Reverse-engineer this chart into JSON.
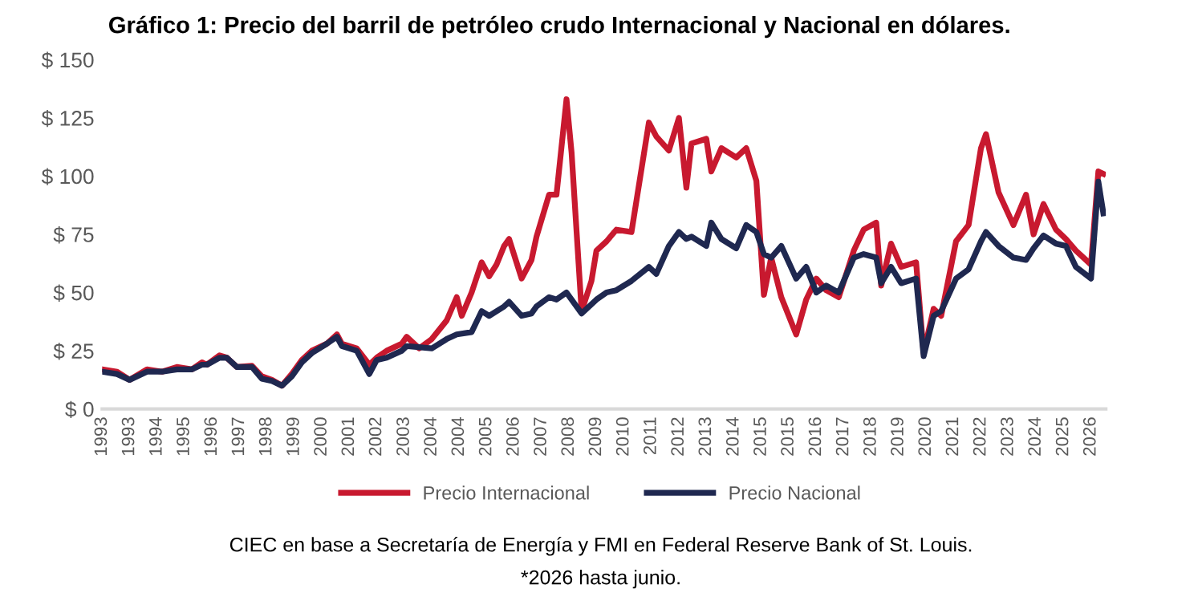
{
  "chart_data": {
    "type": "line",
    "title": "Gráfico 1: Precio del barril de petróleo crudo Internacional y Nacional en dólares.",
    "series": [
      {
        "name": "Precio Internacional",
        "color": "#c8192f",
        "x": [
          "1993-01",
          "1993-07",
          "1993-12",
          "1994-07",
          "1995-01",
          "1995-07",
          "1996-01",
          "1996-05",
          "1996-07",
          "1996-12",
          "1997-03",
          "1997-07",
          "1998-01",
          "1998-05",
          "1998-09",
          "1999-01",
          "1999-05",
          "1999-09",
          "2000-01",
          "2000-07",
          "2000-11",
          "2001-01",
          "2001-07",
          "2001-12",
          "2002-03",
          "2002-07",
          "2003-01",
          "2003-03",
          "2003-08",
          "2004-01",
          "2004-07",
          "2004-11",
          "2005-01",
          "2005-05",
          "2005-09",
          "2005-12",
          "2006-03",
          "2006-06",
          "2006-08",
          "2007-01",
          "2007-05",
          "2007-07",
          "2007-12",
          "2008-03",
          "2008-07",
          "2008-09",
          "2009-01",
          "2009-05",
          "2009-07",
          "2009-11",
          "2010-03",
          "2010-09",
          "2011-04",
          "2011-07",
          "2011-12",
          "2012-04",
          "2012-07",
          "2012-09",
          "2013-03",
          "2013-05",
          "2013-09",
          "2014-03",
          "2014-07",
          "2014-11",
          "2015-02",
          "2015-05",
          "2015-09",
          "2016-03",
          "2016-07",
          "2016-11",
          "2017-03",
          "2017-08",
          "2018-02",
          "2018-06",
          "2018-11",
          "2019-01",
          "2019-05",
          "2019-09",
          "2020-03",
          "2020-06",
          "2020-10",
          "2021-01",
          "2021-07",
          "2021-12",
          "2022-05",
          "2022-07",
          "2022-12",
          "2023-06",
          "2023-11",
          "2024-02",
          "2024-06",
          "2024-11",
          "2025-03",
          "2025-07",
          "2026-01",
          "2026-04",
          "2026-06"
        ],
        "values": [
          17,
          16,
          12.5,
          17,
          16,
          18,
          17,
          20,
          19,
          23,
          22,
          18,
          18.5,
          14,
          12.5,
          10,
          15,
          21,
          25,
          28,
          32,
          28,
          26,
          19,
          22,
          25,
          28,
          31,
          26,
          30,
          38,
          48,
          40,
          50,
          63,
          57,
          62,
          70,
          73,
          56,
          64,
          74,
          92,
          92,
          133,
          110,
          42,
          55,
          68,
          72,
          77,
          76,
          123,
          117,
          111,
          125,
          95,
          114,
          116,
          102,
          112,
          108,
          112,
          98,
          49,
          65,
          48,
          32,
          47,
          56,
          51,
          48,
          68,
          77,
          80,
          53,
          71,
          61,
          63,
          24,
          43,
          40,
          72,
          79,
          112,
          118,
          93,
          79,
          92,
          75,
          88,
          77,
          73,
          68,
          62,
          102,
          101
        ]
      },
      {
        "name": "Precio Nacional",
        "color": "#1f2850",
        "x": [
          "1993-01",
          "1993-07",
          "1993-12",
          "1994-07",
          "1995-01",
          "1995-07",
          "1996-01",
          "1996-05",
          "1996-07",
          "1996-12",
          "1997-03",
          "1997-07",
          "1998-01",
          "1998-05",
          "1998-09",
          "1999-01",
          "1999-05",
          "1999-09",
          "2000-01",
          "2000-07",
          "2000-11",
          "2001-01",
          "2001-07",
          "2001-12",
          "2002-03",
          "2002-07",
          "2003-01",
          "2003-03",
          "2004-01",
          "2004-07",
          "2004-11",
          "2005-05",
          "2005-09",
          "2005-12",
          "2006-06",
          "2006-08",
          "2007-01",
          "2007-05",
          "2007-07",
          "2007-12",
          "2008-03",
          "2008-07",
          "2009-01",
          "2009-07",
          "2009-11",
          "2010-03",
          "2010-09",
          "2011-04",
          "2011-07",
          "2011-12",
          "2012-04",
          "2012-07",
          "2012-09",
          "2013-03",
          "2013-05",
          "2013-09",
          "2014-03",
          "2014-07",
          "2014-11",
          "2015-02",
          "2015-05",
          "2015-09",
          "2016-03",
          "2016-07",
          "2016-11",
          "2017-03",
          "2017-08",
          "2018-02",
          "2018-06",
          "2018-11",
          "2019-01",
          "2019-05",
          "2019-09",
          "2020-03",
          "2020-06",
          "2020-10",
          "2021-01",
          "2021-07",
          "2021-12",
          "2022-05",
          "2022-07",
          "2022-12",
          "2023-06",
          "2023-11",
          "2024-02",
          "2024-06",
          "2024-11",
          "2025-03",
          "2025-07",
          "2026-01",
          "2026-04",
          "2026-06"
        ],
        "values": [
          16,
          15,
          12.5,
          16,
          16,
          17,
          17,
          19,
          19,
          22,
          22,
          18,
          18,
          13,
          12,
          10,
          14,
          20,
          24,
          28,
          31,
          27,
          25,
          15,
          21,
          22,
          25,
          27,
          26,
          30,
          32,
          33,
          42,
          40,
          44,
          46,
          40,
          41,
          44,
          48,
          47,
          50,
          41,
          47,
          50,
          51,
          55,
          61,
          58,
          70,
          76,
          73,
          74,
          70,
          80,
          73,
          69,
          79,
          76,
          66.5,
          65,
          70,
          56,
          61,
          50,
          53,
          50,
          65,
          66.5,
          65,
          54,
          61,
          54,
          56,
          22.7,
          40,
          42,
          56,
          60,
          72,
          76,
          70,
          65,
          64,
          69,
          74.5,
          71,
          70,
          61,
          56,
          97.6,
          84
        ]
      }
    ],
    "xlim": [
      "1993-01",
      "2026-07"
    ],
    "xticks": [
      {
        "value": "1993-01",
        "label": "1993"
      },
      {
        "value": "1993-12",
        "label": "1993"
      },
      {
        "value": "1994-11",
        "label": "1994"
      },
      {
        "value": "1995-10",
        "label": "1995"
      },
      {
        "value": "1996-09",
        "label": "1996"
      },
      {
        "value": "1997-08",
        "label": "1997"
      },
      {
        "value": "1998-07",
        "label": "1998"
      },
      {
        "value": "1999-06",
        "label": "1999"
      },
      {
        "value": "2000-05",
        "label": "2000"
      },
      {
        "value": "2001-04",
        "label": "2001"
      },
      {
        "value": "2002-03",
        "label": "2002"
      },
      {
        "value": "2003-02",
        "label": "2003"
      },
      {
        "value": "2004-01",
        "label": "2004"
      },
      {
        "value": "2004-12",
        "label": "2004"
      },
      {
        "value": "2005-11",
        "label": "2005"
      },
      {
        "value": "2006-10",
        "label": "2006"
      },
      {
        "value": "2007-09",
        "label": "2007"
      },
      {
        "value": "2008-08",
        "label": "2008"
      },
      {
        "value": "2009-07",
        "label": "2009"
      },
      {
        "value": "2010-06",
        "label": "2010"
      },
      {
        "value": "2011-05",
        "label": "2011"
      },
      {
        "value": "2012-04",
        "label": "2012"
      },
      {
        "value": "2013-03",
        "label": "2013"
      },
      {
        "value": "2014-02",
        "label": "2014"
      },
      {
        "value": "2015-01",
        "label": "2015"
      },
      {
        "value": "2015-12",
        "label": "2015"
      },
      {
        "value": "2016-11",
        "label": "2016"
      },
      {
        "value": "2017-10",
        "label": "2017"
      },
      {
        "value": "2018-09",
        "label": "2018"
      },
      {
        "value": "2019-08",
        "label": "2019"
      },
      {
        "value": "2020-07",
        "label": "2020"
      },
      {
        "value": "2021-06",
        "label": "2021"
      },
      {
        "value": "2022-05",
        "label": "2022"
      },
      {
        "value": "2023-04",
        "label": "2023"
      },
      {
        "value": "2024-03",
        "label": "2024"
      },
      {
        "value": "2025-02",
        "label": "2025"
      },
      {
        "value": "2026-01",
        "label": "2026"
      }
    ],
    "ylim": [
      0,
      150
    ],
    "yticks": [
      {
        "value": 0,
        "label": "$ 0"
      },
      {
        "value": 25,
        "label": "$ 25"
      },
      {
        "value": 50,
        "label": "$ 50"
      },
      {
        "value": 75,
        "label": "$ 75"
      },
      {
        "value": 100,
        "label": "$ 100"
      },
      {
        "value": 125,
        "label": "$ 125"
      },
      {
        "value": 150,
        "label": "$ 150"
      }
    ],
    "grid": false,
    "legend": "bottom",
    "line_style": "solid",
    "annotations": [
      "CIEC en base a Secretaría de Energía y FMI en Federal Reserve Bank of St. Louis.",
      "*2026 hasta junio."
    ]
  }
}
